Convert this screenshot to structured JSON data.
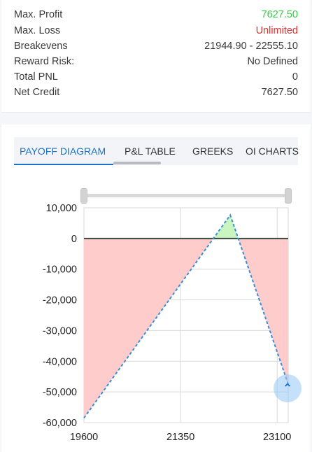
{
  "stats": {
    "rows": [
      {
        "label": "Max. Profit",
        "value": "7627.50",
        "color": "#2ecc40"
      },
      {
        "label": "Max. Loss",
        "value": "Unlimited",
        "color": "#e03131"
      },
      {
        "label": "Breakevens",
        "value": "21944.90 - 22555.10",
        "color": "#3a3a3a"
      },
      {
        "label": "Reward Risk:",
        "value": "No Defined",
        "color": "#3a3a3a"
      },
      {
        "label": "Total PNL",
        "value": "0",
        "color": "#3a3a3a"
      },
      {
        "label": "Net Credit",
        "value": "7627.50",
        "color": "#3a3a3a"
      }
    ]
  },
  "tabs": [
    {
      "label": "PAYOFF DIAGRAM",
      "active": true
    },
    {
      "label": "P&L TABLE",
      "active": false
    },
    {
      "label": "GREEKS",
      "active": false
    },
    {
      "label": "OI CHARTS",
      "active": false
    }
  ],
  "scroll_top_icon": "chevron-up-icon",
  "chart_data": {
    "type": "area",
    "x": [
      19600,
      22250,
      23300
    ],
    "y": [
      -58500,
      7627.5,
      -47500
    ],
    "x_ticks": [
      "19600",
      "21350",
      "23100"
    ],
    "y_ticks": [
      "10,000",
      "0",
      "-10,000",
      "-20,000",
      "-30,000",
      "-40,000",
      "-50,000",
      "-60,000"
    ],
    "xlim": [
      19600,
      23300
    ],
    "ylim": [
      -60000,
      10000
    ],
    "profit_color": "#c8f5c0",
    "loss_color": "#ffcccc",
    "line_color": "#3a8ed6",
    "grid": true
  }
}
